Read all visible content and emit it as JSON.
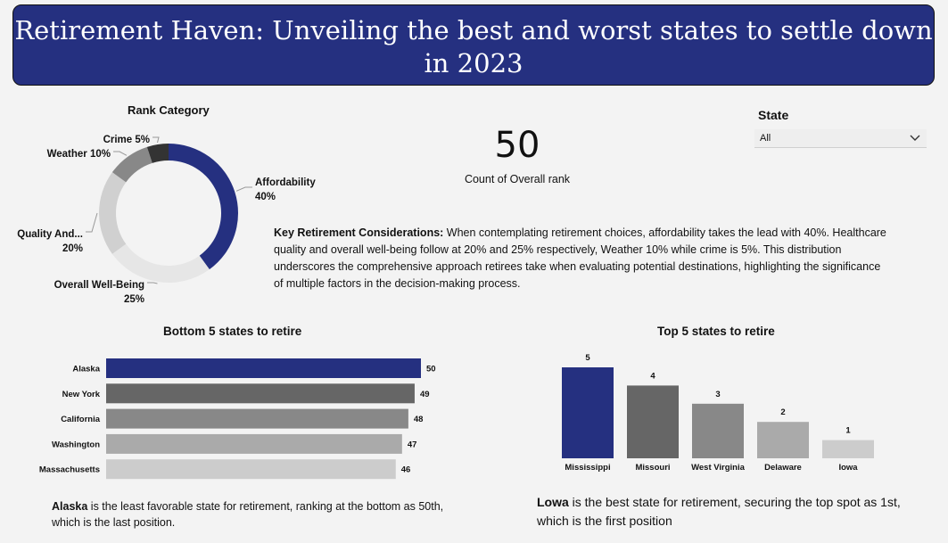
{
  "header": {
    "title": "Retirement Haven: Unveiling the best and worst states to settle down in 2023"
  },
  "filter": {
    "label": "State",
    "value": "All"
  },
  "kpi": {
    "value": "50",
    "label": "Count of Overall rank"
  },
  "insights": {
    "main_bold": "Key Retirement Considerations:",
    "main_text": " When contemplating retirement choices, affordability takes the lead with 40%. Healthcare quality and overall well-being follow at 20% and 25% respectively, Weather 10% while crime is 5%. This distribution underscores the comprehensive approach retirees take when evaluating potential destinations, highlighting the significance of multiple factors in the decision-making process.",
    "bottom_bold": "Alaska",
    "bottom_text": " is the least favorable state for retirement, ranking at the bottom as 50th, which is the last position.",
    "top_bold": "Lowa",
    "top_text": " is the best state for retirement, securing the top spot as 1st, which is the first position"
  },
  "chart_data": [
    {
      "type": "pie",
      "title": "Rank Category",
      "slices": [
        {
          "label": "Affordability",
          "display": [
            "Affordability",
            "40%"
          ],
          "value": 40,
          "color": "#253080"
        },
        {
          "label": "Overall Well-Being",
          "display": [
            "Overall Well-Being",
            "25%"
          ],
          "value": 25,
          "color": "#e6e6e6"
        },
        {
          "label": "Quality And...",
          "display": [
            "Quality And...",
            "20%"
          ],
          "value": 20,
          "color": "#d0d0d0"
        },
        {
          "label": "Weather",
          "display": [
            "Weather 10%"
          ],
          "value": 10,
          "color": "#888888"
        },
        {
          "label": "Crime",
          "display": [
            "Crime 5%"
          ],
          "value": 5,
          "color": "#333333"
        }
      ]
    },
    {
      "type": "bar",
      "orientation": "horizontal",
      "title": "Bottom 5 states to retire",
      "categories": [
        "Alaska",
        "New York",
        "California",
        "Washington",
        "Massachusetts"
      ],
      "values": [
        50,
        49,
        48,
        47,
        46
      ],
      "colors": [
        "#253080",
        "#666666",
        "#888888",
        "#aaaaaa",
        "#cccccc"
      ]
    },
    {
      "type": "bar",
      "orientation": "vertical",
      "title": "Top 5 states to retire",
      "categories": [
        "Mississippi",
        "Missouri",
        "West Virginia",
        "Delaware",
        "Iowa"
      ],
      "values": [
        5,
        4,
        3,
        2,
        1
      ],
      "colors": [
        "#253080",
        "#666666",
        "#888888",
        "#aaaaaa",
        "#cccccc"
      ]
    }
  ]
}
